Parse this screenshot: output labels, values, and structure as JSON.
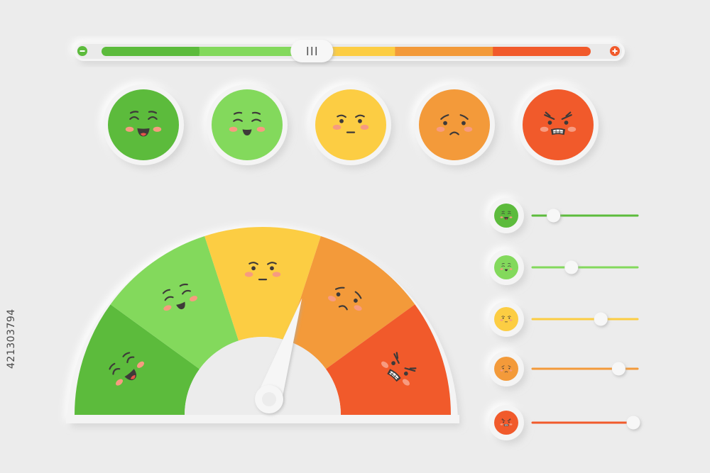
{
  "palette": {
    "background": "#ececec",
    "panel": "#f3f3f3",
    "dark_green": "#5cbb3c",
    "light_green": "#83d95c",
    "yellow": "#fccd43",
    "orange": "#f39a3a",
    "red": "#f15a2b",
    "cheek": "#f79b80",
    "face_line": "#3e3a39"
  },
  "top_slider": {
    "value": 0.43,
    "minus_icon": "minus-icon",
    "plus_icon": "plus-icon",
    "segments": [
      "dark_green",
      "light_green",
      "yellow",
      "orange",
      "red"
    ]
  },
  "emoji_row": [
    {
      "mood": "very-happy",
      "color": "dark_green"
    },
    {
      "mood": "happy",
      "color": "light_green"
    },
    {
      "mood": "neutral",
      "color": "yellow"
    },
    {
      "mood": "sad",
      "color": "orange"
    },
    {
      "mood": "angry",
      "color": "red"
    }
  ],
  "gauge": {
    "segments": [
      {
        "mood": "very-happy",
        "color": "dark_green"
      },
      {
        "mood": "happy",
        "color": "light_green"
      },
      {
        "mood": "neutral",
        "color": "yellow"
      },
      {
        "mood": "sad",
        "color": "orange"
      },
      {
        "mood": "angry",
        "color": "red"
      }
    ],
    "needle_value": 0.6
  },
  "mood_sliders": [
    {
      "mood": "very-happy",
      "color": "dark_green",
      "value": 0.2
    },
    {
      "mood": "happy",
      "color": "light_green",
      "value": 0.37
    },
    {
      "mood": "neutral",
      "color": "yellow",
      "value": 0.65
    },
    {
      "mood": "sad",
      "color": "orange",
      "value": 0.82
    },
    {
      "mood": "angry",
      "color": "red",
      "value": 0.96
    }
  ],
  "stock_id": "421303794"
}
